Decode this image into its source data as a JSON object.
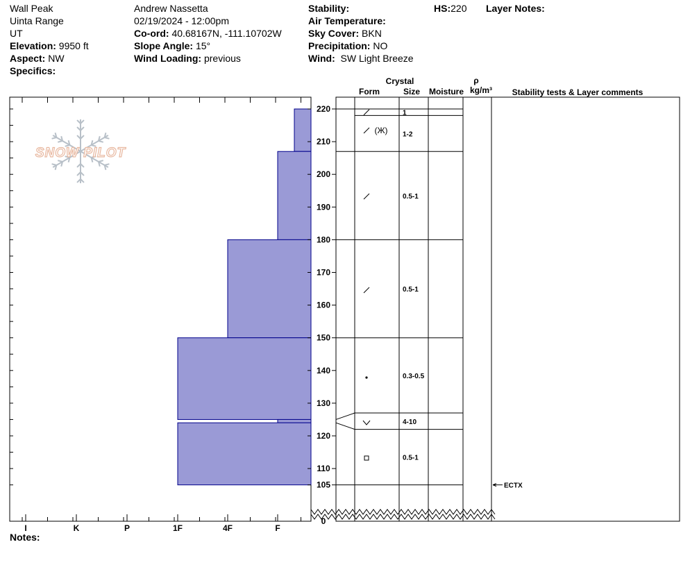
{
  "header": {
    "site": "Wall Peak",
    "range": "Uinta Range",
    "state": "UT",
    "elevation_label": "Elevation:",
    "elevation": "9950 ft",
    "aspect_label": "Aspect:",
    "aspect": "NW",
    "specifics_label": "Specifics:",
    "observer": "Andrew Nassetta",
    "datetime": "02/19/2024 - 12:00pm",
    "coord_label": "Co-ord:",
    "coord": "40.68167N, -111.10702W",
    "slope_label": "Slope Angle:",
    "slope": "15°",
    "wind_loading_label": "Wind Loading:",
    "wind_loading": "previous",
    "stability_label": "Stability:",
    "air_temp_label": "Air Temperature:",
    "sky_label": "Sky Cover:",
    "sky": "BKN",
    "precip_label": "Precipitation:",
    "precip": "NO",
    "wind_label": "Wind:",
    "wind": "SW Light Breeze",
    "hs_label": "HS:",
    "hs": "220",
    "layer_notes_label": "Layer Notes:"
  },
  "columns": {
    "crystal": "Crystal",
    "form": "Form",
    "size": "Size",
    "moisture": "Moisture",
    "rho": "ρ",
    "density_unit": "kg/m³",
    "stability_comments": "Stability tests & Layer comments"
  },
  "notes_label": "Notes:",
  "logo_text": "SNOW PILOT",
  "colors": {
    "fill": "#9a9ad6",
    "stroke": "#00008b",
    "logo": "#e8b8a0",
    "flake": "#b8c0c8"
  },
  "chart_data": {
    "type": "snow-profile",
    "hand_hardness_scale": [
      "I",
      "K",
      "P",
      "1F",
      "4F",
      "F"
    ],
    "y_ticks": [
      220,
      210,
      200,
      190,
      180,
      170,
      160,
      150,
      140,
      130,
      120,
      110,
      105,
      0
    ],
    "layers": [
      {
        "top": 220,
        "bottom": 207,
        "hardness": "F-",
        "form": "precip-particles-decomposing",
        "size": "1-2"
      },
      {
        "top": 207,
        "bottom": 180,
        "hardness": "F",
        "form": "decomposing",
        "size": "0.5-1"
      },
      {
        "top": 180,
        "bottom": 150,
        "hardness": "4F",
        "form": "decomposing",
        "size": "0.5-1"
      },
      {
        "top": 150,
        "bottom": 125,
        "hardness": "1F",
        "form": "rounded",
        "size": "0.3-0.5"
      },
      {
        "top": 125,
        "bottom": 124,
        "hardness": "F",
        "form": "surface-hoar",
        "size": "4-10"
      },
      {
        "top": 124,
        "bottom": 105,
        "hardness": "1F",
        "form": "faceted",
        "size": "0.5-1"
      }
    ],
    "form_rows": [
      {
        "top": 220,
        "bottom": 218,
        "size": "1"
      },
      {
        "top": 218,
        "bottom": 207,
        "size": "1-2"
      },
      {
        "top": 207,
        "bottom": 180,
        "size": "0.5-1"
      },
      {
        "top": 180,
        "bottom": 150,
        "size": "0.5-1"
      },
      {
        "top": 150,
        "bottom": 127,
        "size": "0.3-0.5"
      },
      {
        "top": 127,
        "bottom": 122,
        "size": "4-10"
      },
      {
        "top": 122,
        "bottom": 105,
        "size": "0.5-1"
      }
    ],
    "stability_tests": [
      {
        "depth": 105,
        "label": "ECTX"
      }
    ]
  }
}
